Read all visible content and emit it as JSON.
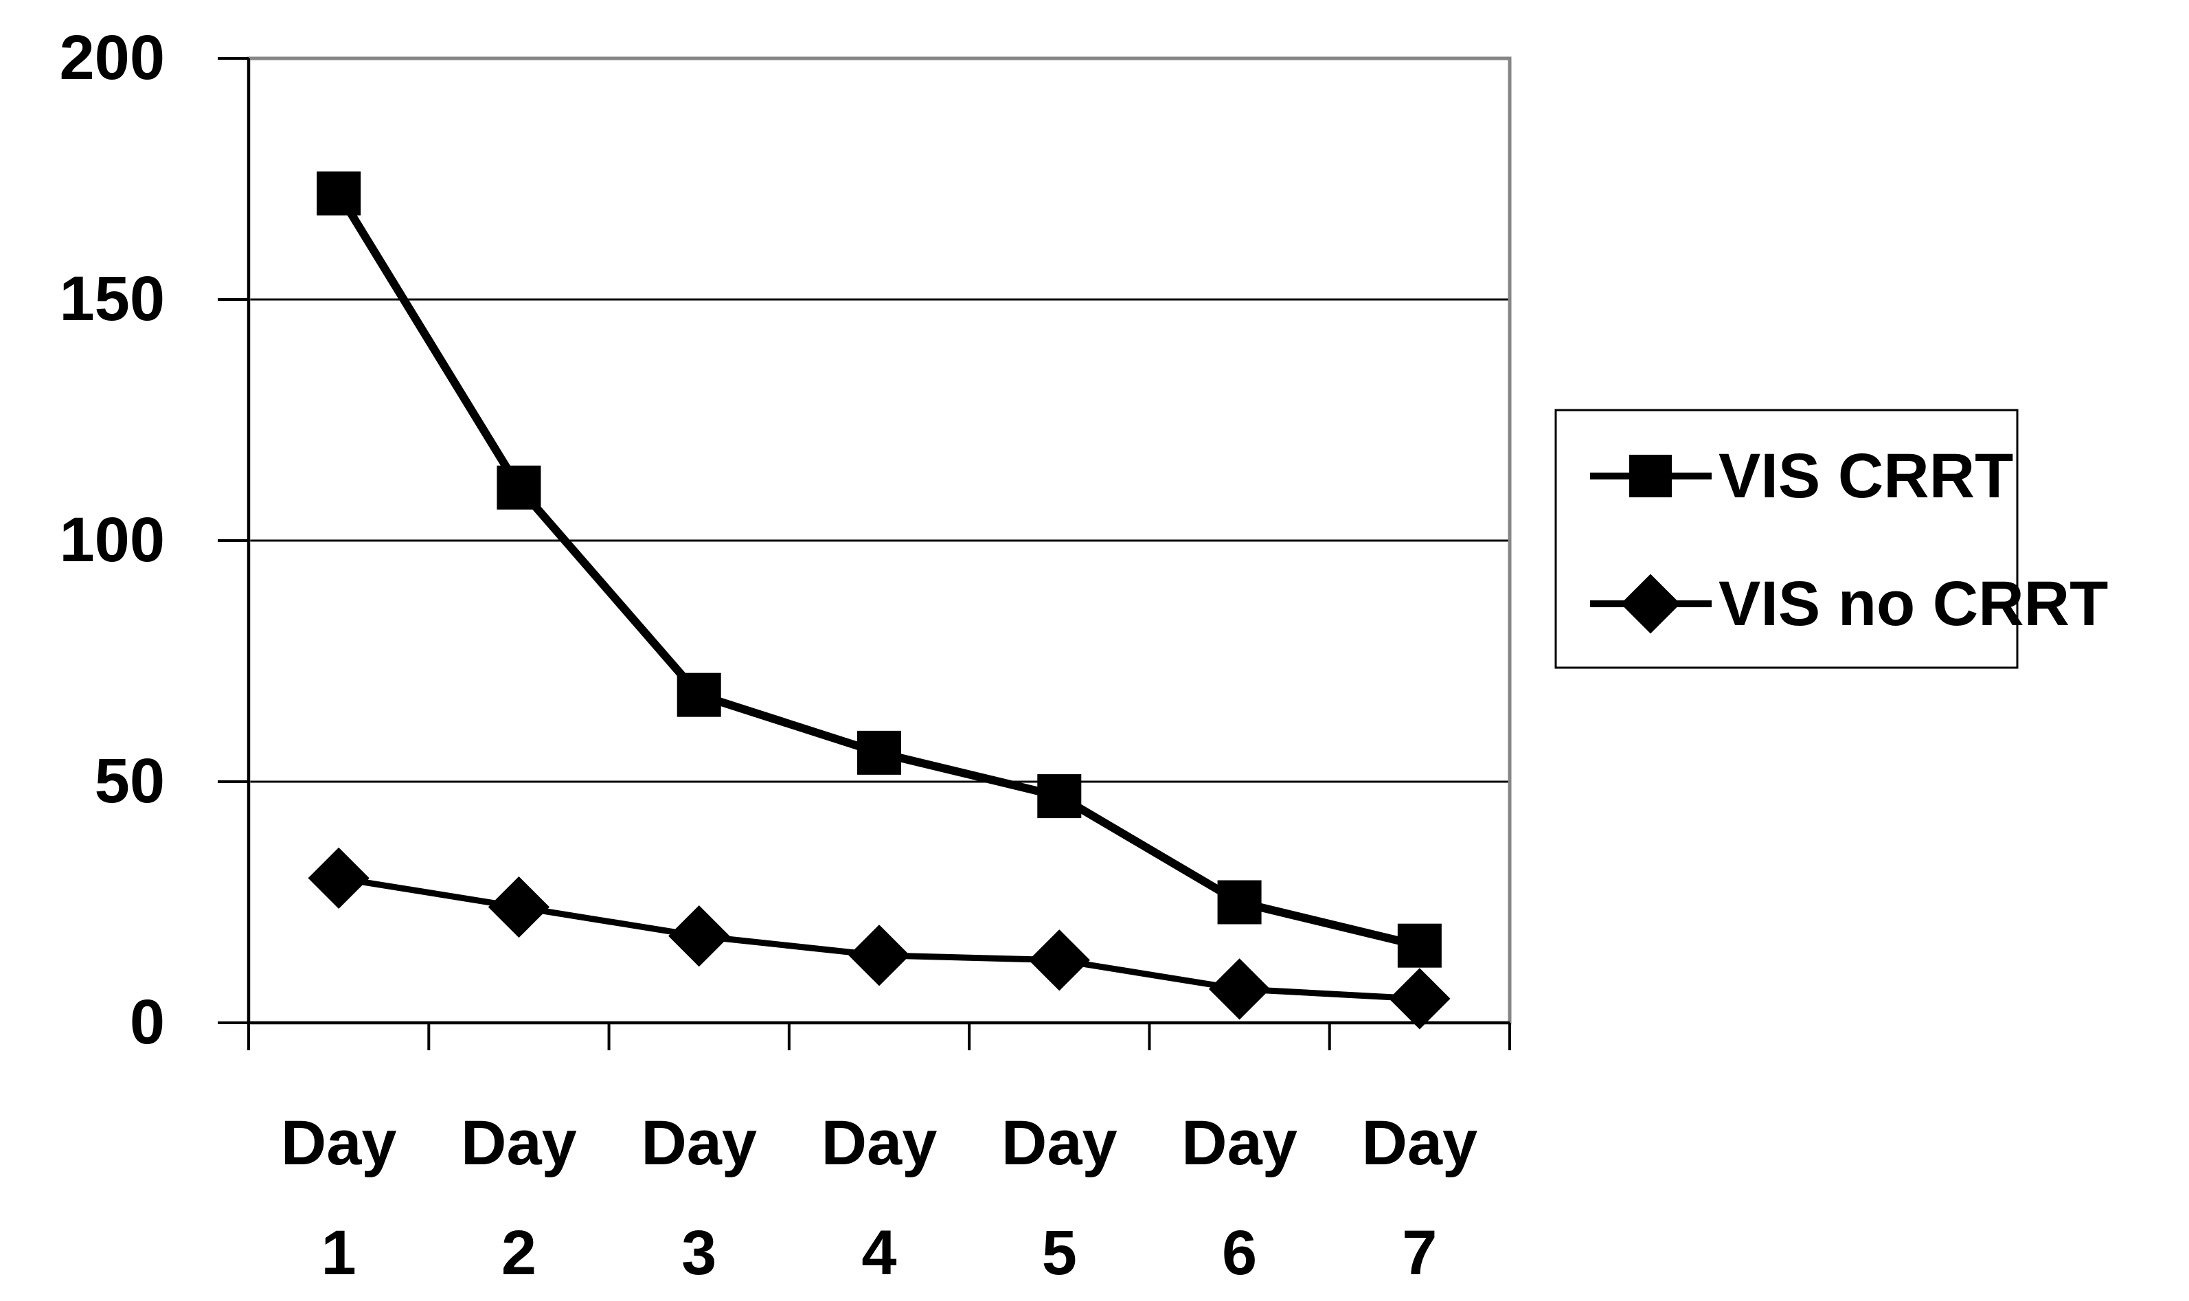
{
  "chart_data": {
    "type": "line",
    "title": "",
    "xlabel": "",
    "ylabel": "",
    "categories": [
      "Day 1",
      "Day 2",
      "Day 3",
      "Day 4",
      "Day 5",
      "Day 6",
      "Day 7"
    ],
    "category_lines": [
      [
        "Day",
        "1"
      ],
      [
        "Day",
        "2"
      ],
      [
        "Day",
        "3"
      ],
      [
        "Day",
        "4"
      ],
      [
        "Day",
        "5"
      ],
      [
        "Day",
        "6"
      ],
      [
        "Day",
        "7"
      ]
    ],
    "ylim": [
      0,
      200
    ],
    "yticks": [
      0,
      50,
      100,
      150,
      200
    ],
    "grid": true,
    "legend_position": "right",
    "series": [
      {
        "name": "VIS CRRT",
        "marker": "square",
        "color": "#000000",
        "values": [
          172,
          111,
          68,
          56,
          47,
          25,
          16
        ]
      },
      {
        "name": "VIS no CRRT",
        "marker": "diamond",
        "color": "#000000",
        "values": [
          30,
          24,
          18,
          14,
          13,
          7,
          5
        ]
      }
    ]
  }
}
